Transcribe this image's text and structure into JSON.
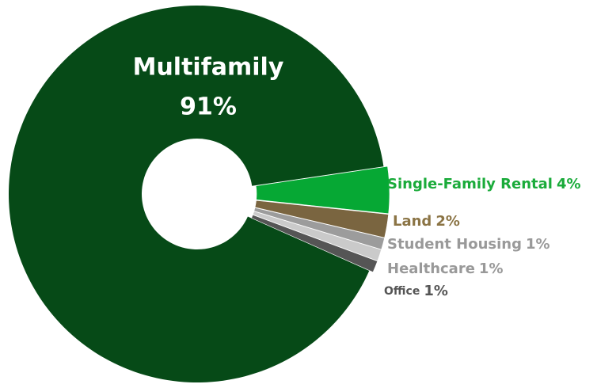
{
  "chart_data": {
    "type": "donut",
    "categories": [
      "Multifamily",
      "Single-Family Rental",
      "Land",
      "Student Housing",
      "Healthcare",
      "Office"
    ],
    "values": [
      91,
      4,
      2,
      1,
      1,
      1
    ],
    "value_labels": [
      "91%",
      "4%",
      "2%",
      "1%",
      "1%",
      "1%"
    ],
    "colors": [
      "#064a17",
      "#06a834",
      "#7a6540",
      "#9c9c9c",
      "#cacaca",
      "#555555"
    ],
    "label_colors": [
      "#ffffff",
      "#1aab3a",
      "#8b7445",
      "#999999",
      "#999999",
      "#555555"
    ]
  }
}
